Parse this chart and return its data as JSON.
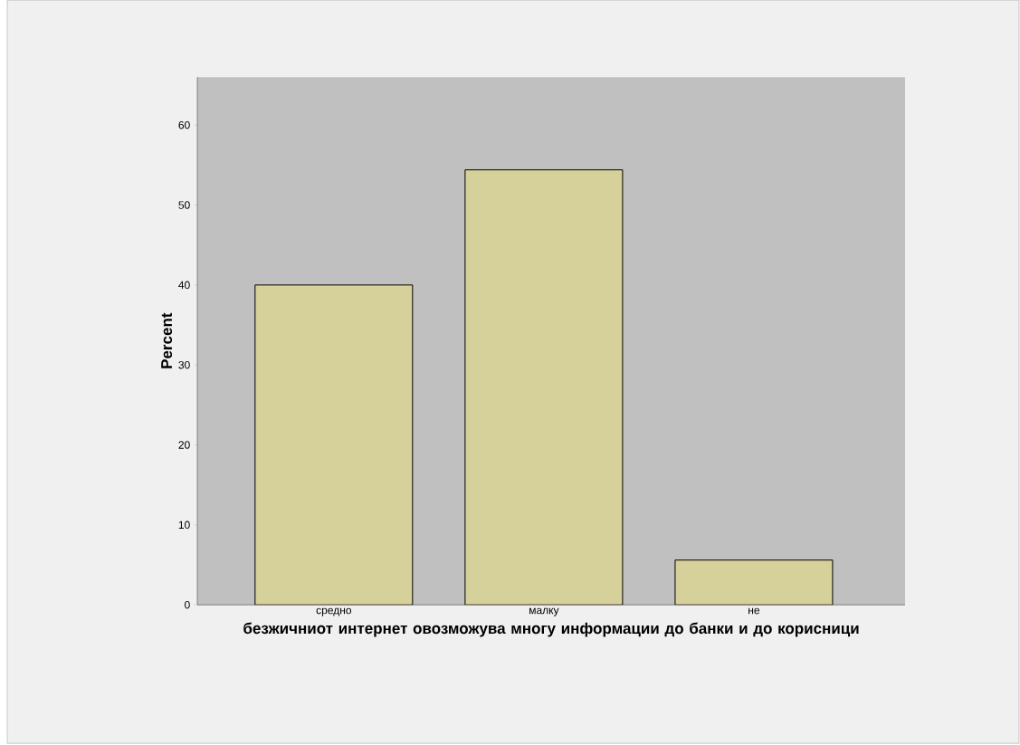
{
  "chart_data": {
    "type": "bar",
    "xlabel": "безжичниот интернет овозможува многу информации до банки и до корисници",
    "ylabel": "Percent",
    "categories": [
      "средно",
      "малку",
      "не"
    ],
    "values": [
      40.0,
      54.4,
      5.6
    ],
    "color": "#d6d09a",
    "ylim": [
      0,
      66
    ],
    "yticks": [
      0,
      10,
      20,
      30,
      40,
      50,
      60
    ],
    "grid": false
  }
}
